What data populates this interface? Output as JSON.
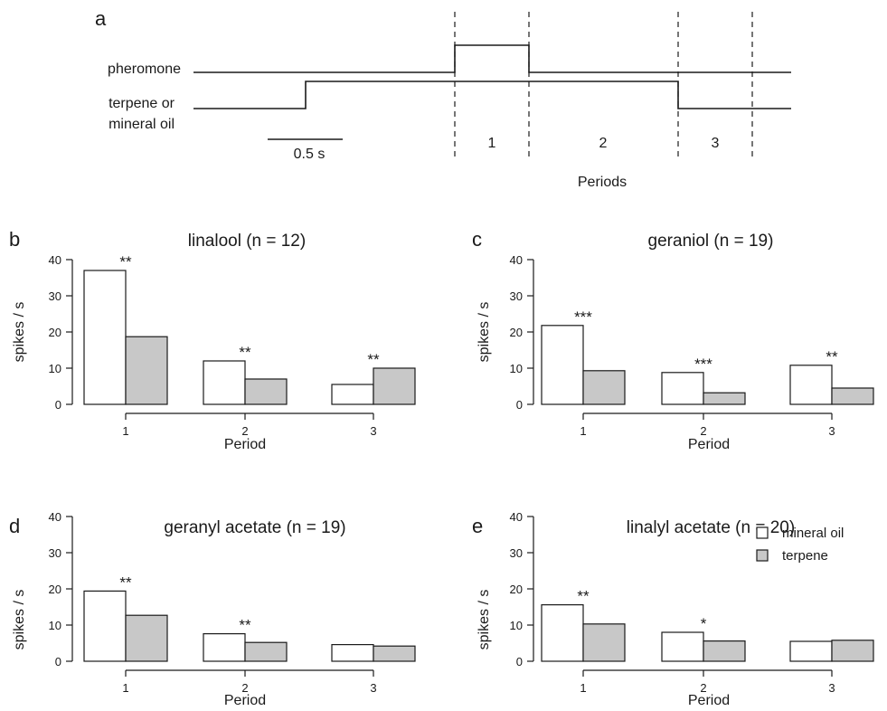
{
  "colors": {
    "mineral_oil": "#ffffff",
    "terpene": "#c8c8c8",
    "ink": "#1a1a1a"
  },
  "timing": {
    "letter": "a",
    "pheromone_label": "pheromone",
    "terpene_label_line1": "terpene or",
    "terpene_label_line2": "mineral oil",
    "scale_bar_label": "0.5 s",
    "periods_label": "Periods",
    "periods": [
      "1",
      "2",
      "3"
    ]
  },
  "legend": {
    "mineral_oil": "mineral oil",
    "terpene": "terpene"
  },
  "chart_data": [
    {
      "letter": "b",
      "type": "bar",
      "title": "linalool (n = 12)",
      "xlabel": "Period",
      "ylabel": "spikes / s",
      "ylim": [
        0,
        40
      ],
      "yticks": [
        "0",
        "10",
        "20",
        "30",
        "40"
      ],
      "categories": [
        "1",
        "2",
        "3"
      ],
      "series": [
        {
          "name": "mineral oil",
          "values": [
            37,
            12,
            5.5
          ]
        },
        {
          "name": "terpene",
          "values": [
            18.7,
            7,
            10
          ]
        }
      ],
      "annotations": [
        "**",
        "**",
        "**"
      ]
    },
    {
      "letter": "c",
      "type": "bar",
      "title": "geraniol (n = 19)",
      "xlabel": "Period",
      "ylabel": "spikes / s",
      "ylim": [
        0,
        40
      ],
      "yticks": [
        "0",
        "10",
        "20",
        "30",
        "40"
      ],
      "categories": [
        "1",
        "2",
        "3"
      ],
      "series": [
        {
          "name": "mineral oil",
          "values": [
            21.8,
            8.8,
            10.8
          ]
        },
        {
          "name": "terpene",
          "values": [
            9.3,
            3.2,
            4.5
          ]
        }
      ],
      "annotations": [
        "***",
        "***",
        "**"
      ]
    },
    {
      "letter": "d",
      "type": "bar",
      "title": "geranyl acetate (n = 19)",
      "xlabel": "Period",
      "ylabel": "spikes / s",
      "ylim": [
        0,
        40
      ],
      "yticks": [
        "0",
        "10",
        "20",
        "30",
        "40"
      ],
      "categories": [
        "1",
        "2",
        "3"
      ],
      "series": [
        {
          "name": "mineral oil",
          "values": [
            19.4,
            7.6,
            4.6
          ]
        },
        {
          "name": "terpene",
          "values": [
            12.7,
            5.2,
            4.2
          ]
        }
      ],
      "annotations": [
        "**",
        "**",
        ""
      ]
    },
    {
      "letter": "e",
      "type": "bar",
      "title": "linalyl acetate (n = 20)",
      "xlabel": "Period",
      "ylabel": "spikes / s",
      "ylim": [
        0,
        40
      ],
      "yticks": [
        "0",
        "10",
        "20",
        "30",
        "40"
      ],
      "categories": [
        "1",
        "2",
        "3"
      ],
      "series": [
        {
          "name": "mineral oil",
          "values": [
            15.6,
            8,
            5.5
          ]
        },
        {
          "name": "terpene",
          "values": [
            10.3,
            5.6,
            5.8
          ]
        }
      ],
      "annotations": [
        "**",
        "*",
        ""
      ]
    }
  ]
}
